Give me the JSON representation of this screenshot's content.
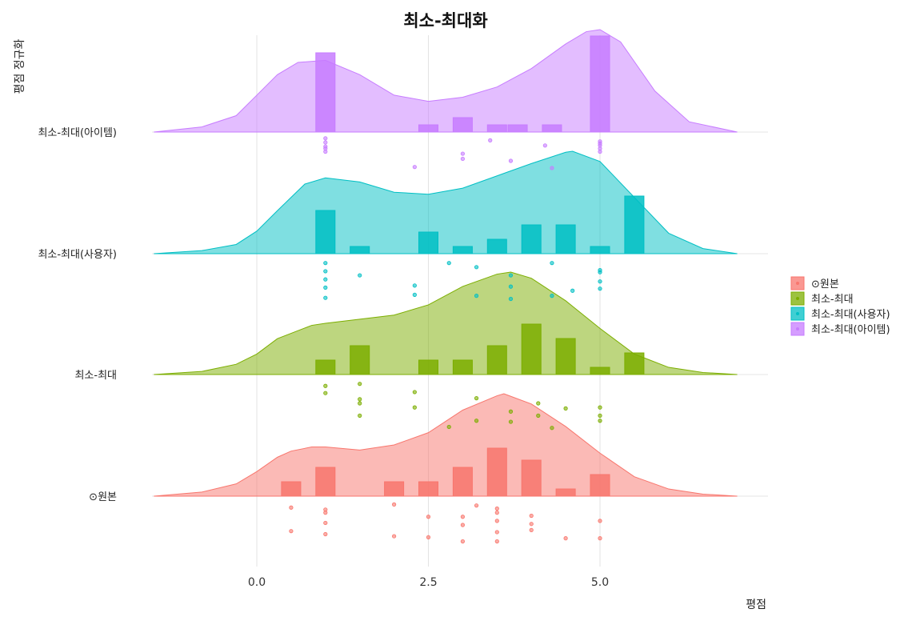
{
  "chart_data": {
    "type": "ridgeline",
    "title": "최소-최대화",
    "xlabel": "평점",
    "ylabel": "평점 정규화",
    "xlim": [
      -1.5,
      7.2
    ],
    "x_ticks": [
      {
        "value": 0.0,
        "label": "0.0"
      },
      {
        "value": 2.5,
        "label": "2.5"
      },
      {
        "value": 5.0,
        "label": "5.0"
      }
    ],
    "grid": true,
    "legend_position": "right",
    "series": [
      {
        "name": "⊙원본",
        "color": "#F8766D",
        "density": [
          [
            -1.5,
            0.0
          ],
          [
            -0.8,
            0.04
          ],
          [
            -0.3,
            0.12
          ],
          [
            0.0,
            0.24
          ],
          [
            0.3,
            0.38
          ],
          [
            0.5,
            0.44
          ],
          [
            0.8,
            0.48
          ],
          [
            1.0,
            0.48
          ],
          [
            1.5,
            0.45
          ],
          [
            2.0,
            0.5
          ],
          [
            2.5,
            0.62
          ],
          [
            3.0,
            0.84
          ],
          [
            3.5,
            0.98
          ],
          [
            3.6,
            1.0
          ],
          [
            4.0,
            0.9
          ],
          [
            4.5,
            0.68
          ],
          [
            5.0,
            0.42
          ],
          [
            5.5,
            0.19
          ],
          [
            6.0,
            0.07
          ],
          [
            6.5,
            0.02
          ],
          [
            7.0,
            0.0
          ]
        ],
        "bins": [
          [
            0.5,
            0.15
          ],
          [
            1.0,
            0.3
          ],
          [
            2.0,
            0.15
          ],
          [
            2.5,
            0.15
          ],
          [
            3.0,
            0.3
          ],
          [
            3.5,
            0.5
          ],
          [
            4.0,
            0.375
          ],
          [
            4.5,
            0.075
          ],
          [
            5.0,
            0.225
          ]
        ],
        "points": [
          [
            0.5,
            0.16
          ],
          [
            1.0,
            0.26
          ],
          [
            1.0,
            0.2
          ],
          [
            1.0,
            0.68
          ],
          [
            0.5,
            0.62
          ],
          [
            1.0,
            0.46
          ],
          [
            2.0,
            0.1
          ],
          [
            2.0,
            0.72
          ],
          [
            2.5,
            0.34
          ],
          [
            2.5,
            0.74
          ],
          [
            3.0,
            0.34
          ],
          [
            3.0,
            0.5
          ],
          [
            3.0,
            0.82
          ],
          [
            3.2,
            0.12
          ],
          [
            3.5,
            0.18
          ],
          [
            3.5,
            0.26
          ],
          [
            3.5,
            0.42
          ],
          [
            3.5,
            0.64
          ],
          [
            3.5,
            0.82
          ],
          [
            4.0,
            0.32
          ],
          [
            4.0,
            0.48
          ],
          [
            4.0,
            0.6
          ],
          [
            4.5,
            0.76
          ],
          [
            5.0,
            0.76
          ],
          [
            5.0,
            0.42
          ]
        ]
      },
      {
        "name": "최소-최대",
        "color": "#7CAE00",
        "density": [
          [
            -1.5,
            0.0
          ],
          [
            -0.8,
            0.03
          ],
          [
            -0.3,
            0.1
          ],
          [
            0.0,
            0.2
          ],
          [
            0.3,
            0.35
          ],
          [
            0.8,
            0.48
          ],
          [
            1.0,
            0.5
          ],
          [
            1.5,
            0.54
          ],
          [
            2.0,
            0.58
          ],
          [
            2.5,
            0.68
          ],
          [
            3.0,
            0.86
          ],
          [
            3.5,
            0.98
          ],
          [
            3.7,
            1.0
          ],
          [
            4.0,
            0.94
          ],
          [
            4.5,
            0.72
          ],
          [
            5.0,
            0.45
          ],
          [
            5.5,
            0.2
          ],
          [
            6.0,
            0.07
          ],
          [
            6.5,
            0.02
          ],
          [
            7.0,
            0.0
          ]
        ],
        "bins": [
          [
            1.0,
            0.15
          ],
          [
            1.5,
            0.3
          ],
          [
            2.5,
            0.15
          ],
          [
            3.0,
            0.15
          ],
          [
            3.5,
            0.3
          ],
          [
            4.0,
            0.525
          ],
          [
            4.5,
            0.375
          ],
          [
            5.0,
            0.075
          ],
          [
            5.5,
            0.225
          ]
        ],
        "points": [
          [
            1.0,
            0.16
          ],
          [
            1.0,
            0.3
          ],
          [
            1.5,
            0.12
          ],
          [
            1.5,
            0.42
          ],
          [
            1.5,
            0.5
          ],
          [
            1.5,
            0.74
          ],
          [
            2.3,
            0.28
          ],
          [
            2.3,
            0.58
          ],
          [
            3.2,
            0.4
          ],
          [
            3.2,
            0.84
          ],
          [
            3.7,
            0.66
          ],
          [
            3.7,
            0.86
          ],
          [
            4.1,
            0.5
          ],
          [
            4.1,
            0.74
          ],
          [
            4.5,
            0.6
          ],
          [
            5.0,
            0.58
          ],
          [
            5.0,
            0.74
          ],
          [
            5.0,
            0.84
          ],
          [
            2.8,
            0.96
          ],
          [
            4.3,
            0.98
          ]
        ]
      },
      {
        "name": "최소-최대(사용자)",
        "color": "#00BFC4",
        "density": [
          [
            -1.5,
            0.0
          ],
          [
            -0.8,
            0.03
          ],
          [
            -0.3,
            0.09
          ],
          [
            0.0,
            0.22
          ],
          [
            0.3,
            0.42
          ],
          [
            0.7,
            0.68
          ],
          [
            1.0,
            0.74
          ],
          [
            1.5,
            0.7
          ],
          [
            2.0,
            0.6
          ],
          [
            2.5,
            0.58
          ],
          [
            3.0,
            0.64
          ],
          [
            3.5,
            0.76
          ],
          [
            4.0,
            0.88
          ],
          [
            4.5,
            0.99
          ],
          [
            4.6,
            1.0
          ],
          [
            5.0,
            0.9
          ],
          [
            5.5,
            0.55
          ],
          [
            6.0,
            0.2
          ],
          [
            6.5,
            0.05
          ],
          [
            7.0,
            0.0
          ]
        ],
        "bins": [
          [
            1.0,
            0.45
          ],
          [
            1.5,
            0.075
          ],
          [
            2.5,
            0.225
          ],
          [
            3.0,
            0.075
          ],
          [
            3.5,
            0.15
          ],
          [
            4.0,
            0.3
          ],
          [
            4.5,
            0.3
          ],
          [
            5.0,
            0.075
          ],
          [
            5.5,
            0.6
          ]
        ],
        "points": [
          [
            1.0,
            0.12
          ],
          [
            1.0,
            0.28
          ],
          [
            1.0,
            0.44
          ],
          [
            1.0,
            0.6
          ],
          [
            1.0,
            0.8
          ],
          [
            1.5,
            0.36
          ],
          [
            2.3,
            0.56
          ],
          [
            2.3,
            0.74
          ],
          [
            2.8,
            0.12
          ],
          [
            3.2,
            0.2
          ],
          [
            3.2,
            0.76
          ],
          [
            3.7,
            0.36
          ],
          [
            3.7,
            0.58
          ],
          [
            3.7,
            0.82
          ],
          [
            4.3,
            0.12
          ],
          [
            4.3,
            0.76
          ],
          [
            4.6,
            0.66
          ],
          [
            5.0,
            0.26
          ],
          [
            5.0,
            0.3
          ],
          [
            5.0,
            0.48
          ],
          [
            5.0,
            0.62
          ]
        ]
      },
      {
        "name": "최소-최대(아이템)",
        "color": "#C77CFF",
        "density": [
          [
            -1.5,
            0.0
          ],
          [
            -0.8,
            0.05
          ],
          [
            -0.3,
            0.16
          ],
          [
            0.0,
            0.36
          ],
          [
            0.3,
            0.56
          ],
          [
            0.6,
            0.68
          ],
          [
            1.0,
            0.7
          ],
          [
            1.5,
            0.56
          ],
          [
            2.0,
            0.36
          ],
          [
            2.5,
            0.3
          ],
          [
            3.0,
            0.34
          ],
          [
            3.5,
            0.44
          ],
          [
            4.0,
            0.62
          ],
          [
            4.5,
            0.86
          ],
          [
            4.8,
            0.98
          ],
          [
            5.0,
            1.0
          ],
          [
            5.3,
            0.88
          ],
          [
            5.8,
            0.4
          ],
          [
            6.3,
            0.1
          ],
          [
            7.0,
            0.0
          ]
        ],
        "bins": [
          [
            1.0,
            0.825
          ],
          [
            2.5,
            0.075
          ],
          [
            3.0,
            0.15
          ],
          [
            3.5,
            0.075
          ],
          [
            3.8,
            0.075
          ],
          [
            4.3,
            0.075
          ],
          [
            5.0,
            1.0
          ]
        ],
        "points": [
          [
            1.0,
            0.06
          ],
          [
            1.0,
            0.14
          ],
          [
            1.0,
            0.22
          ],
          [
            1.0,
            0.26
          ],
          [
            1.0,
            0.32
          ],
          [
            2.3,
            0.62
          ],
          [
            3.0,
            0.36
          ],
          [
            3.0,
            0.46
          ],
          [
            3.4,
            0.1
          ],
          [
            3.7,
            0.5
          ],
          [
            4.2,
            0.2
          ],
          [
            4.3,
            0.64
          ],
          [
            5.0,
            0.12
          ],
          [
            5.0,
            0.16
          ],
          [
            5.0,
            0.2
          ],
          [
            5.0,
            0.26
          ],
          [
            5.0,
            0.32
          ]
        ]
      }
    ]
  }
}
